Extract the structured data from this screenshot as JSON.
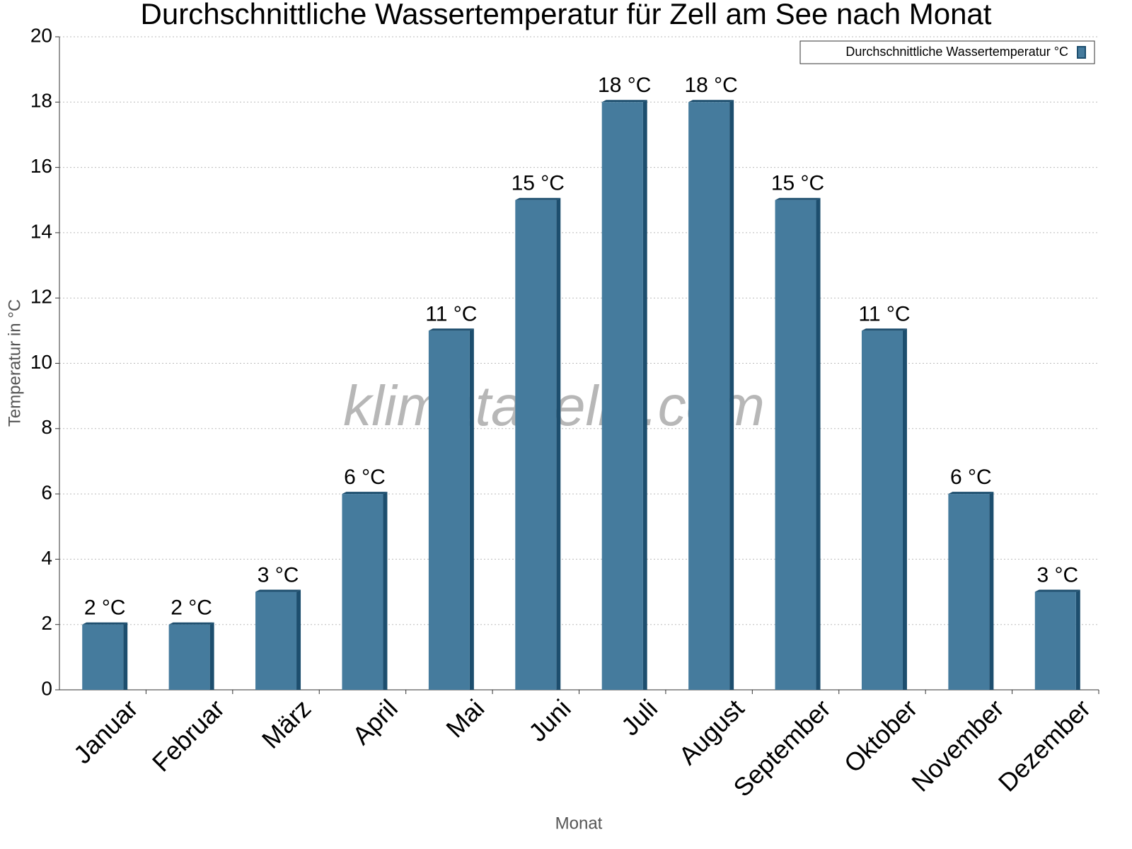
{
  "chart_data": {
    "type": "bar",
    "title": "Durchschnittliche Wassertemperatur für Zell am See nach Monat",
    "x_label": "Monat",
    "y_label": "Temperatur in °C",
    "watermark": "klimatabelle.com",
    "categories": [
      "Januar",
      "Februar",
      "März",
      "April",
      "Mai",
      "Juni",
      "Juli",
      "August",
      "September",
      "Oktober",
      "November",
      "Dezember"
    ],
    "series": [
      {
        "name": "Durchschnittliche Wassertemperatur °C",
        "color": "#457b9d",
        "values": [
          2,
          2,
          3,
          6,
          11,
          15,
          18,
          18,
          15,
          11,
          6,
          3
        ],
        "value_labels": [
          "2 °C",
          "2 °C",
          "3 °C",
          "6 °C",
          "11 °C",
          "15 °C",
          "18 °C",
          "18 °C",
          "15 °C",
          "11 °C",
          "6 °C",
          "3 °C"
        ]
      }
    ],
    "ylim": [
      0,
      20
    ],
    "yticks": [
      0,
      2,
      4,
      6,
      8,
      10,
      12,
      14,
      16,
      18,
      20
    ],
    "grid": true,
    "legend": "upper right"
  }
}
